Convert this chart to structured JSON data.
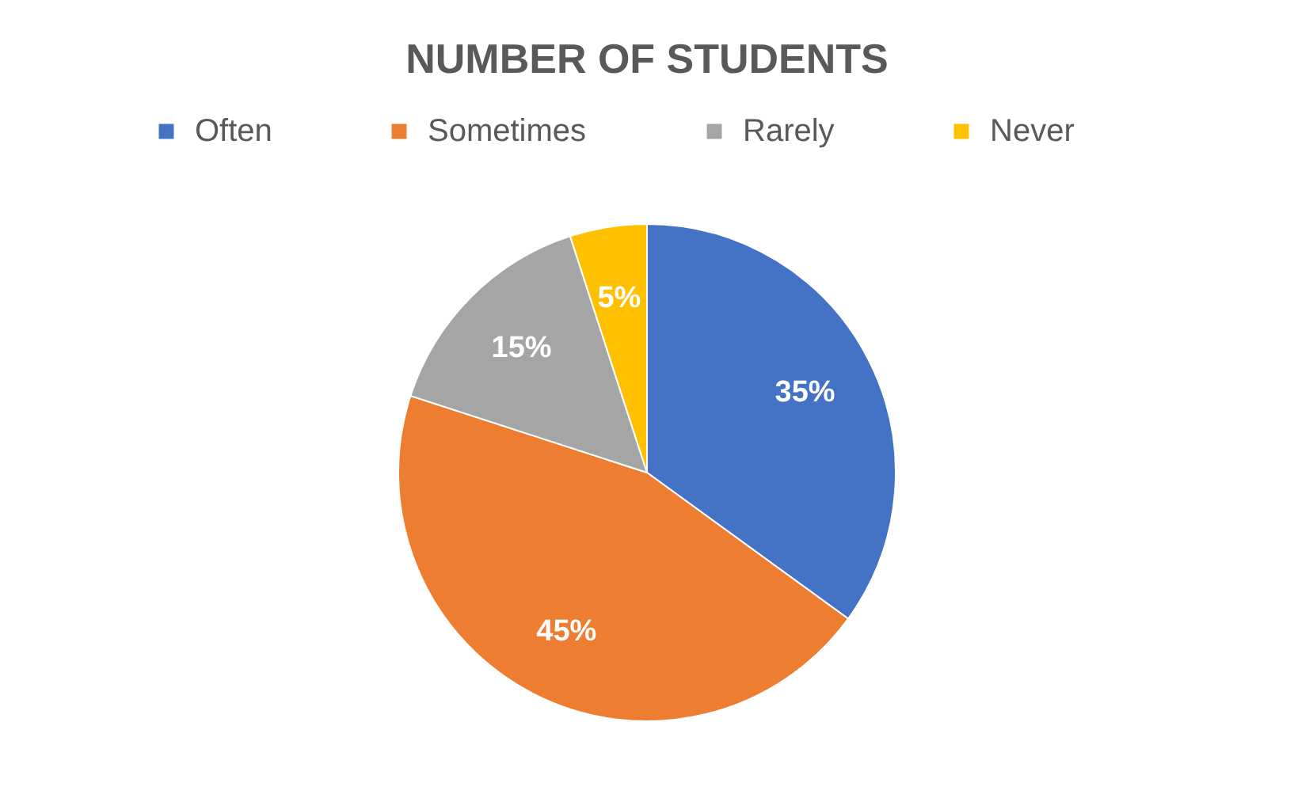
{
  "chart_data": {
    "type": "pie",
    "title": "NUMBER OF STUDENTS",
    "categories": [
      "Often",
      "Sometimes",
      "Rarely",
      "Never"
    ],
    "values": [
      35,
      45,
      15,
      5
    ],
    "colors": [
      "#4472c4",
      "#ed7d31",
      "#a5a5a5",
      "#ffc000"
    ],
    "value_labels": [
      "35%",
      "45%",
      "15%",
      "5%"
    ],
    "legend": "top"
  }
}
